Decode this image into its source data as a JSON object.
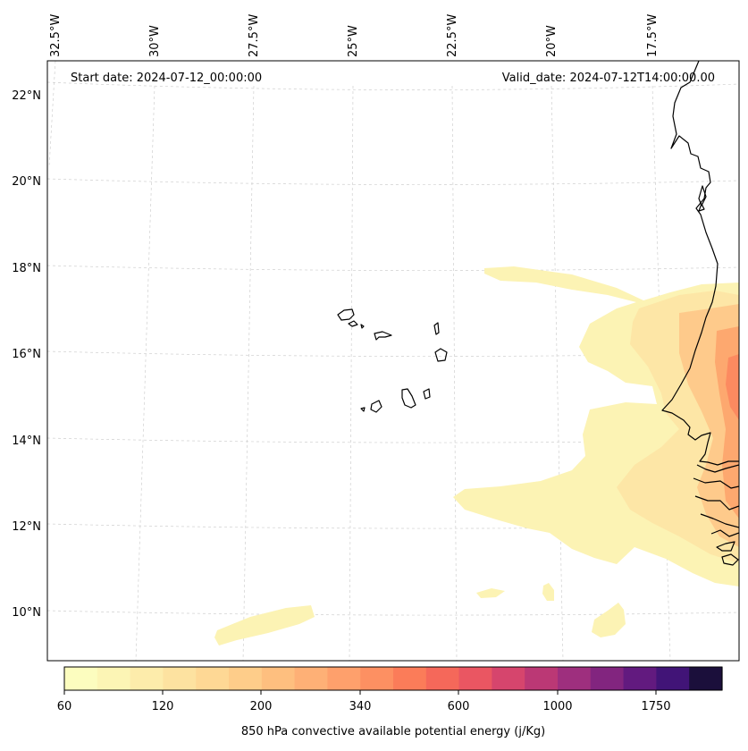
{
  "map": {
    "start_label": "Start date: 2024-07-12_00:00:00",
    "valid_label": "Valid_date: 2024-07-12T14:00:00.00",
    "lon_labels": [
      "32.5°W",
      "30°W",
      "27.5°W",
      "25°W",
      "22.5°W",
      "20°W",
      "17.5°W"
    ],
    "lat_labels": [
      "22°N",
      "20°N",
      "18°N",
      "16°N",
      "14°N",
      "12°N",
      "10°N"
    ],
    "features": [
      "cape-verde-islands",
      "west-africa-coastline",
      "cape-field"
    ]
  },
  "colorbar": {
    "label": "850 hPa convective available potential energy (j/Kg)",
    "tick_labels": [
      "60",
      "120",
      "200",
      "340",
      "600",
      "1000",
      "1750"
    ],
    "colors": [
      "#fcfdbf",
      "#fcf5b5",
      "#fdecab",
      "#fde2a0",
      "#fed895",
      "#fecd8a",
      "#febf7f",
      "#feb076",
      "#fea06c",
      "#fd9062",
      "#fb7c59",
      "#f5685a",
      "#ea5662",
      "#d6456d",
      "#bb3875",
      "#9e2f7e",
      "#82257f",
      "#621a7f",
      "#411477",
      "#1b0f3b"
    ]
  },
  "chart_data": {
    "type": "heatmap",
    "variable": "850 hPa convective available potential energy",
    "units": "j/Kg",
    "colorbar_ticks": [
      60,
      120,
      200,
      340,
      600,
      1000,
      1750
    ],
    "lon_range": [
      -32.5,
      -15.5
    ],
    "lat_range": [
      9,
      22.7
    ],
    "start_date": "2024-07-12_00:00:00",
    "valid_date": "2024-07-12T14:00:00.00"
  }
}
